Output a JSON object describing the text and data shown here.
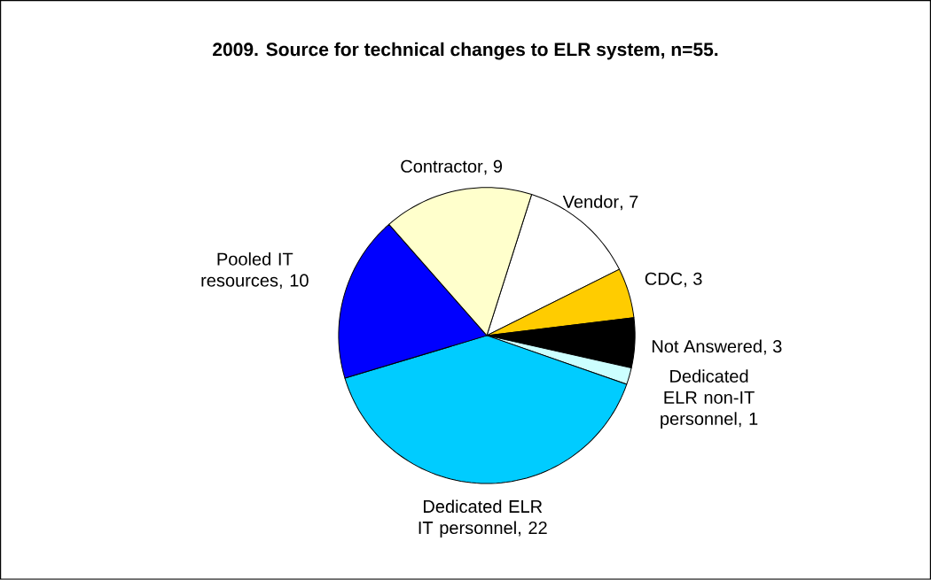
{
  "chart_data": {
    "type": "pie",
    "title": "2009. Source for technical changes to ELR system, n=55.",
    "categories": [
      "Vendor",
      "CDC",
      "Not Answered",
      "Dedicated ELR non-IT personnel",
      "Dedicated ELR IT personnel",
      "Pooled IT resources",
      "Contractor"
    ],
    "values": [
      7,
      3,
      3,
      1,
      22,
      10,
      9
    ],
    "colors": [
      "#ffffff",
      "#ffcc00",
      "#000000",
      "#ccffff",
      "#00ccff",
      "#0000ff",
      "#ffffcc"
    ],
    "value_labels": [
      ", 7",
      ", 3",
      ", 3",
      ", 1",
      ", 22",
      ", 10",
      ", 9"
    ]
  }
}
